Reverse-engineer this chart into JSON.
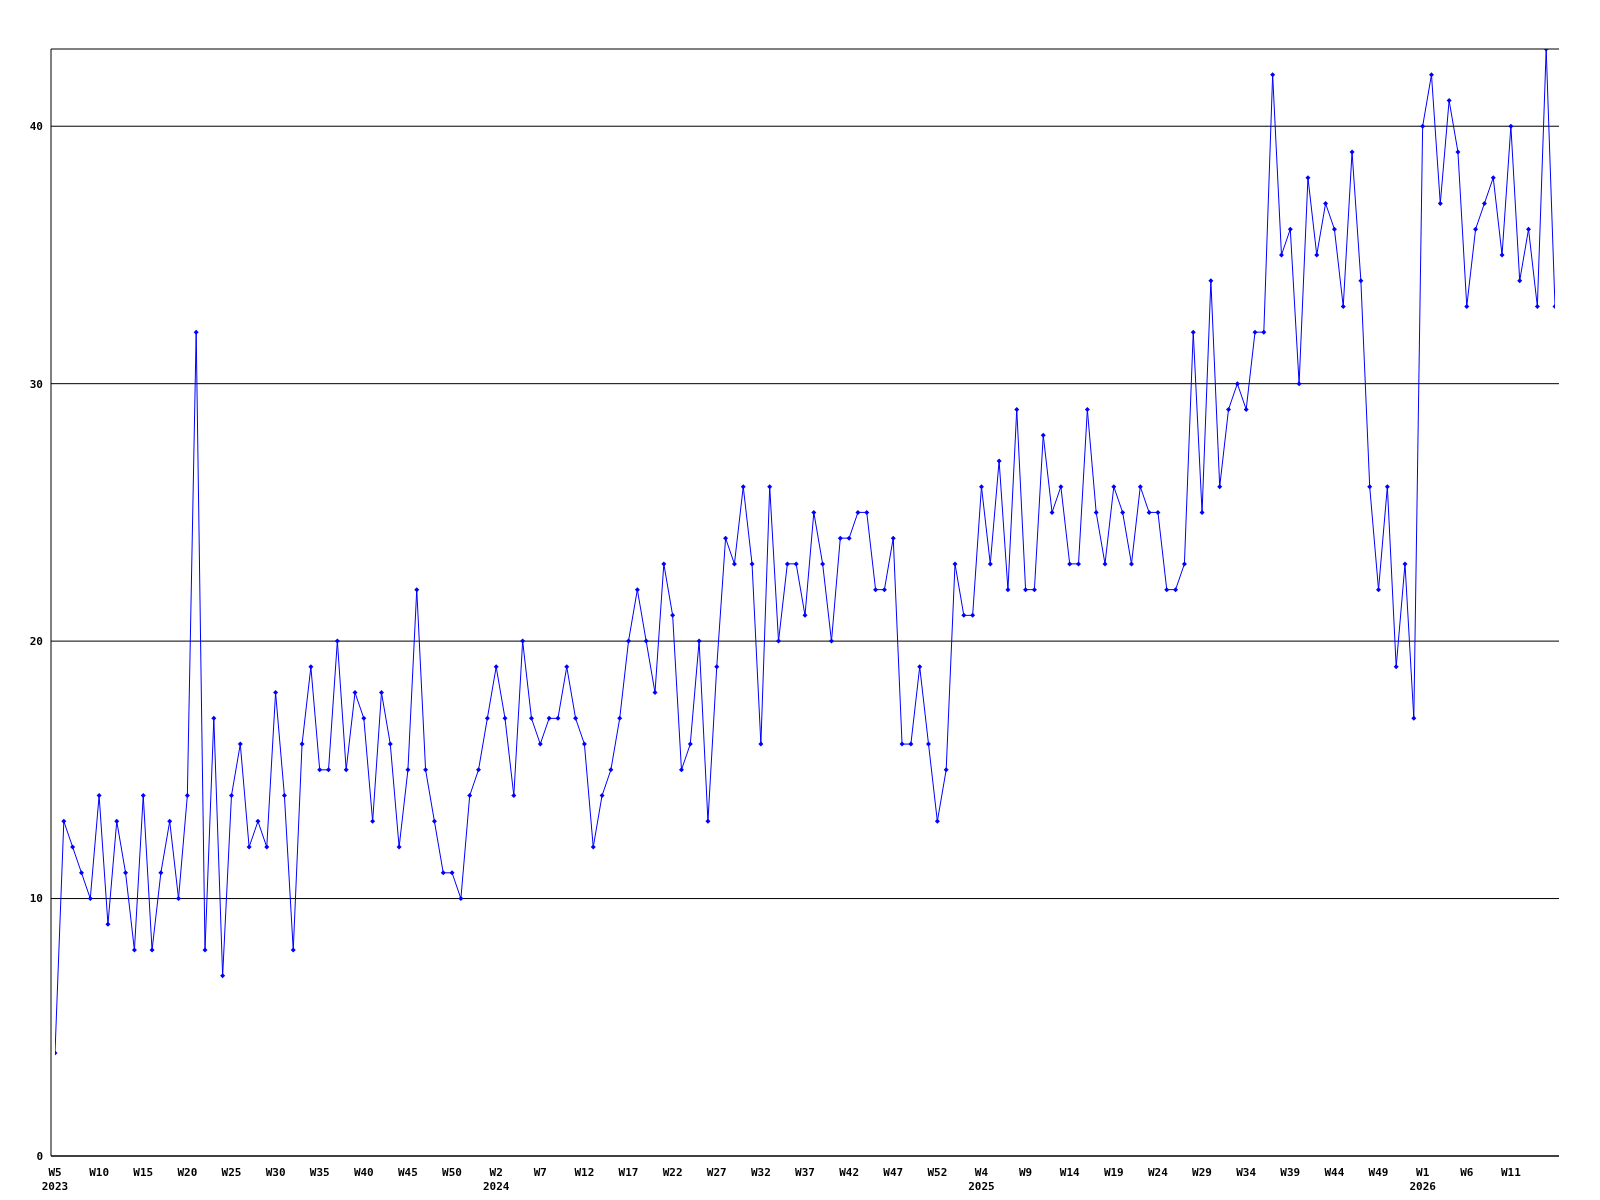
{
  "chart_data": {
    "type": "line",
    "color": "#0000ff",
    "marker": "diamond",
    "grid": "y",
    "ylim": [
      0,
      43
    ],
    "yticks": [
      0,
      10,
      20,
      30,
      40
    ],
    "categories": [
      "W5\n2023",
      null,
      null,
      null,
      null,
      "W10",
      null,
      null,
      null,
      null,
      "W15",
      null,
      null,
      null,
      null,
      "W20",
      null,
      null,
      null,
      null,
      "W25",
      null,
      null,
      null,
      null,
      "W30",
      null,
      null,
      null,
      null,
      "W35",
      null,
      null,
      null,
      null,
      "W40",
      null,
      null,
      null,
      null,
      "W45",
      null,
      null,
      null,
      null,
      "W50",
      null,
      null,
      null,
      null,
      "W2\n2024",
      null,
      null,
      null,
      null,
      "W7",
      null,
      null,
      null,
      null,
      "W12",
      null,
      null,
      null,
      null,
      "W17",
      null,
      null,
      null,
      null,
      "W22",
      null,
      null,
      null,
      null,
      "W27",
      null,
      null,
      null,
      null,
      "W32",
      null,
      null,
      null,
      null,
      "W37",
      null,
      null,
      null,
      null,
      "W42",
      null,
      null,
      null,
      null,
      "W47",
      null,
      null,
      null,
      null,
      "W52",
      null,
      null,
      null,
      null,
      "W4\n2025",
      null,
      null,
      null,
      null,
      "W9",
      null,
      null,
      null,
      null,
      "W14",
      null,
      null,
      null,
      null,
      "W19",
      null,
      null,
      null,
      null,
      "W24",
      null,
      null,
      null,
      null,
      "W29",
      null,
      null,
      null,
      null,
      "W34",
      null,
      null,
      null,
      null,
      "W39",
      null,
      null,
      null,
      null,
      "W44",
      null,
      null,
      null,
      null,
      "W49",
      null,
      null,
      null,
      null,
      "W1\n2026",
      null,
      null,
      null,
      null,
      "W6",
      null,
      null,
      null,
      null,
      "W11",
      null,
      null,
      null,
      null,
      null
    ],
    "values": [
      4,
      13,
      12,
      11,
      10,
      14,
      9,
      13,
      11,
      8,
      14,
      8,
      11,
      13,
      10,
      14,
      32,
      8,
      17,
      7,
      14,
      16,
      12,
      13,
      12,
      18,
      14,
      8,
      16,
      19,
      15,
      15,
      20,
      15,
      18,
      17,
      13,
      18,
      16,
      12,
      15,
      22,
      15,
      13,
      11,
      11,
      10,
      14,
      15,
      17,
      19,
      17,
      14,
      20,
      17,
      16,
      17,
      17,
      19,
      17,
      16,
      12,
      14,
      15,
      17,
      20,
      22,
      20,
      18,
      23,
      21,
      15,
      16,
      20,
      13,
      19,
      24,
      23,
      26,
      23,
      16,
      26,
      20,
      23,
      23,
      21,
      25,
      23,
      20,
      24,
      24,
      25,
      25,
      22,
      22,
      24,
      16,
      16,
      19,
      16,
      13,
      15,
      23,
      21,
      21,
      26,
      23,
      27,
      22,
      29,
      22,
      22,
      28,
      25,
      26,
      23,
      23,
      29,
      25,
      23,
      26,
      25,
      23,
      26,
      25,
      25,
      22,
      22,
      23,
      32,
      25,
      34,
      26,
      29,
      30,
      29,
      32,
      32,
      42,
      35,
      36,
      30,
      38,
      35,
      37,
      36,
      33,
      39,
      34,
      26,
      22,
      26,
      19,
      23,
      17,
      40,
      42,
      37,
      41,
      39,
      33,
      36,
      37,
      38,
      35,
      40,
      34,
      36,
      33,
      43,
      33
    ]
  }
}
